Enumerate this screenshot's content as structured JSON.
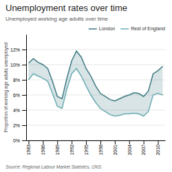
{
  "chart_data": {
    "type": "line",
    "title": "Unemployment rates over time",
    "subtitle": "Unemployed working age adults over time",
    "ylabel": "Proportion of working age adults unemployed",
    "source": "Source: Regional Labour Market Statistics, ONS",
    "x": [
      1983,
      1984,
      1985,
      1986,
      1987,
      1988,
      1989,
      1990,
      1991,
      1992,
      1993,
      1994,
      1995,
      1996,
      1997,
      1998,
      1999,
      2000,
      2001,
      2002,
      2003,
      2004,
      2005,
      2006,
      2007,
      2008,
      2009,
      2010,
      2011
    ],
    "series": [
      {
        "name": "London",
        "color": "#3d7a82",
        "values": [
          10.2,
          10.8,
          10.3,
          10.0,
          9.5,
          7.8,
          5.8,
          5.5,
          8.2,
          10.5,
          11.8,
          11.0,
          9.5,
          8.5,
          7.2,
          6.2,
          5.8,
          5.4,
          5.2,
          5.5,
          5.8,
          6.0,
          6.3,
          6.2,
          5.8,
          6.5,
          8.8,
          9.2,
          9.8
        ]
      },
      {
        "name": "Rest of England",
        "color": "#6aacb3",
        "values": [
          8.0,
          8.8,
          8.5,
          8.2,
          7.8,
          6.2,
          4.5,
          4.2,
          6.8,
          8.8,
          9.5,
          8.5,
          7.2,
          6.0,
          5.0,
          4.2,
          3.8,
          3.4,
          3.2,
          3.3,
          3.5,
          3.5,
          3.6,
          3.5,
          3.2,
          3.8,
          6.0,
          6.2,
          6.0
        ]
      }
    ],
    "xlim": [
      1982.5,
      2011.5
    ],
    "xticks": [
      1983,
      1986,
      1989,
      1992,
      1995,
      1998,
      2001,
      2004,
      2007,
      2010
    ],
    "ylim": [
      0,
      14
    ],
    "yticks": [
      {
        "value": 0,
        "label": "0%"
      },
      {
        "value": 2,
        "label": "2%"
      },
      {
        "value": 4,
        "label": "4%"
      },
      {
        "value": 6,
        "label": "6%"
      },
      {
        "value": 8,
        "label": "8%"
      },
      {
        "value": 10,
        "label": "10%"
      },
      {
        "value": 12,
        "label": "12%"
      }
    ],
    "grid": "y",
    "legend": "upper right"
  }
}
